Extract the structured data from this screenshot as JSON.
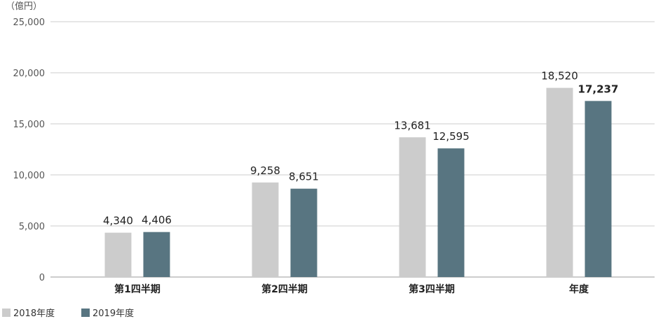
{
  "chart_data": {
    "type": "bar",
    "unit_label": "（億円）",
    "categories": [
      "第1四半期",
      "第2四半期",
      "第3四半期",
      "年度"
    ],
    "series": [
      {
        "name": "2018年度",
        "values": [
          4340,
          9258,
          13681,
          18520
        ],
        "color": "#cccccc"
      },
      {
        "name": "2019年度",
        "values": [
          4406,
          8651,
          12595,
          17237
        ],
        "color": "#587581"
      }
    ],
    "value_labels": [
      [
        "4,340",
        "9,258",
        "13,681",
        "18,520"
      ],
      [
        "4,406",
        "8,651",
        "12,595",
        "17,237"
      ]
    ],
    "y_ticks": [
      0,
      5000,
      10000,
      15000,
      20000,
      25000
    ],
    "y_tick_labels": [
      "0",
      "5,000",
      "10,000",
      "15,000",
      "20,000",
      "25,000"
    ],
    "ylim": [
      0,
      25000
    ],
    "grid": true,
    "legend_position": "bottom-left",
    "highlight_category_index": 3,
    "highlight_color": "#587581",
    "axis_color": "#999999",
    "grid_color": "#cccccc"
  }
}
